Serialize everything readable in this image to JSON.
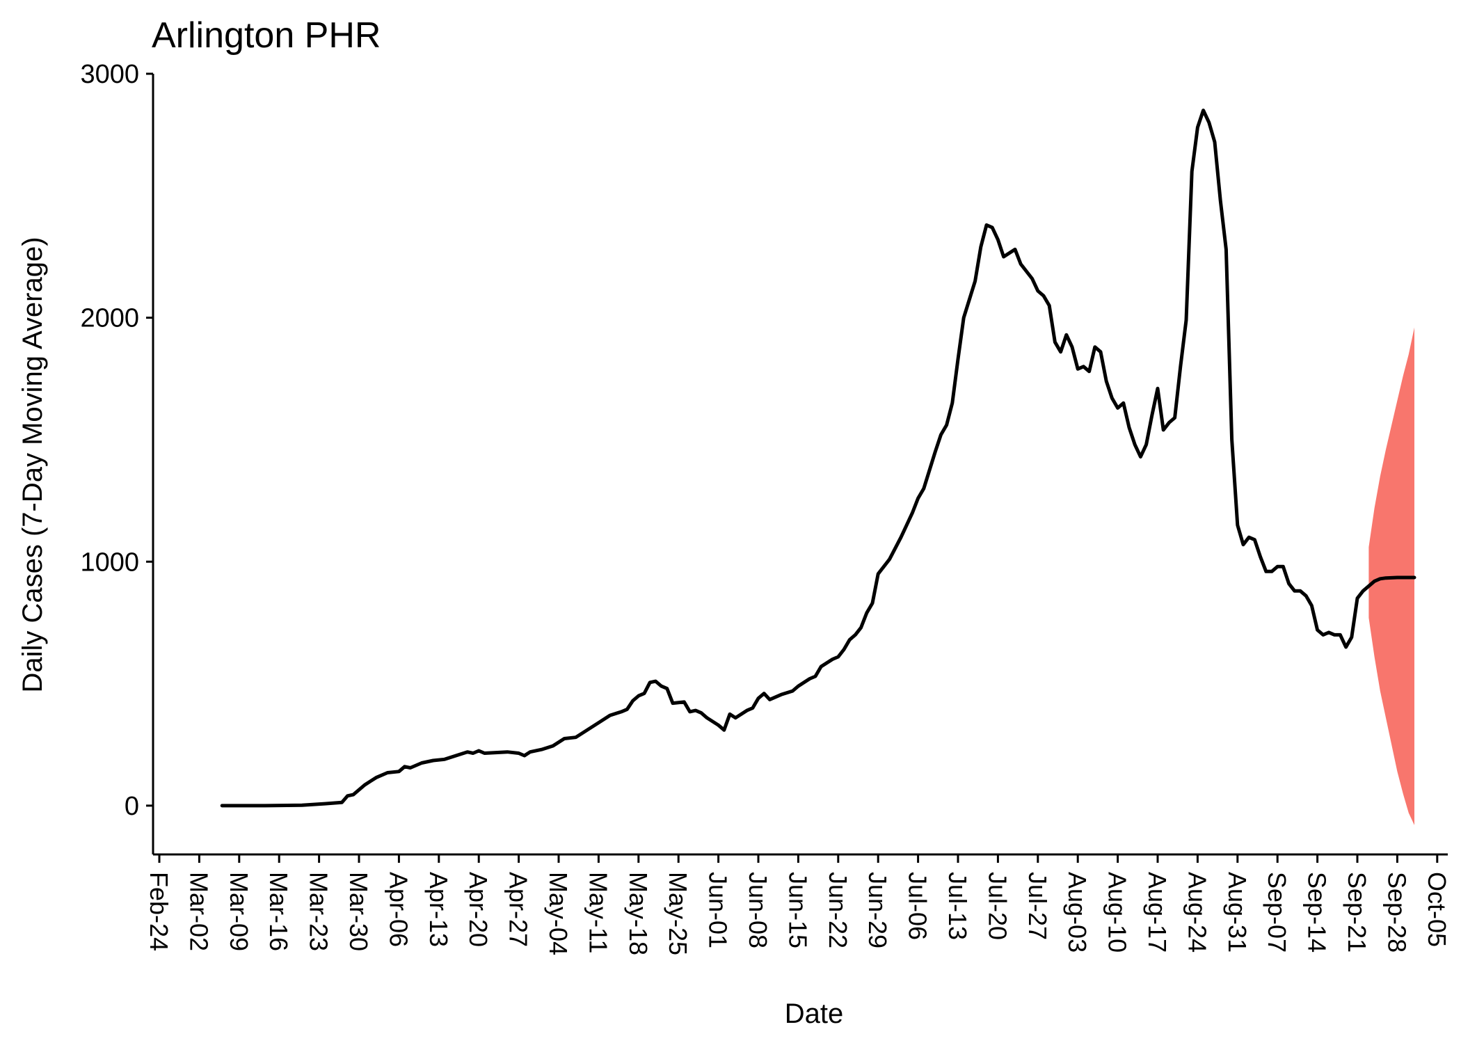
{
  "chart_data": {
    "type": "line",
    "title": "Arlington PHR",
    "xlabel": "Date",
    "ylabel": "Daily Cases (7-Day Moving Average)",
    "ylim": [
      -200,
      3000
    ],
    "x_ticks": [
      "Feb-24",
      "Mar-02",
      "Mar-09",
      "Mar-16",
      "Mar-23",
      "Mar-30",
      "Apr-06",
      "Apr-13",
      "Apr-20",
      "Apr-27",
      "May-04",
      "May-11",
      "May-18",
      "May-25",
      "Jun-01",
      "Jun-08",
      "Jun-15",
      "Jun-22",
      "Jun-29",
      "Jul-06",
      "Jul-13",
      "Jul-20",
      "Jul-27",
      "Aug-03",
      "Aug-10",
      "Aug-17",
      "Aug-24",
      "Aug-31",
      "Sep-07",
      "Sep-14",
      "Sep-21",
      "Sep-28",
      "Oct-05"
    ],
    "y_ticks": [
      0,
      1000,
      2000,
      3000
    ],
    "x_range": [
      "Feb-24",
      "Oct-05"
    ],
    "grid": false,
    "line_color": "#000000",
    "band_color": "#F8766D",
    "series": [
      {
        "values": [
          [
            "Mar-06",
            0
          ],
          [
            "Mar-13",
            0
          ],
          [
            "Mar-20",
            2
          ],
          [
            "Mar-24",
            8
          ],
          [
            "Mar-27",
            13
          ],
          [
            "Mar-28",
            40
          ],
          [
            "Mar-29",
            45
          ],
          [
            "Mar-31",
            85
          ],
          [
            "Apr-01",
            100
          ],
          [
            "Apr-02",
            115
          ],
          [
            "Apr-04",
            135
          ],
          [
            "Apr-06",
            140
          ],
          [
            "Apr-07",
            160
          ],
          [
            "Apr-08",
            155
          ],
          [
            "Apr-10",
            175
          ],
          [
            "Apr-12",
            185
          ],
          [
            "Apr-14",
            190
          ],
          [
            "Apr-16",
            205
          ],
          [
            "Apr-18",
            220
          ],
          [
            "Apr-19",
            215
          ],
          [
            "Apr-20",
            225
          ],
          [
            "Apr-21",
            215
          ],
          [
            "Apr-25",
            220
          ],
          [
            "Apr-27",
            215
          ],
          [
            "Apr-28",
            205
          ],
          [
            "Apr-29",
            220
          ],
          [
            "May-01",
            230
          ],
          [
            "May-03",
            245
          ],
          [
            "May-05",
            275
          ],
          [
            "May-07",
            280
          ],
          [
            "May-09",
            310
          ],
          [
            "May-11",
            340
          ],
          [
            "May-13",
            370
          ],
          [
            "May-15",
            385
          ],
          [
            "May-16",
            395
          ],
          [
            "May-17",
            430
          ],
          [
            "May-18",
            450
          ],
          [
            "May-19",
            460
          ],
          [
            "May-20",
            505
          ],
          [
            "May-21",
            510
          ],
          [
            "May-22",
            490
          ],
          [
            "May-23",
            480
          ],
          [
            "May-24",
            420
          ],
          [
            "May-26",
            425
          ],
          [
            "May-27",
            385
          ],
          [
            "May-28",
            390
          ],
          [
            "May-29",
            380
          ],
          [
            "May-30",
            360
          ],
          [
            "Jun-01",
            330
          ],
          [
            "Jun-02",
            310
          ],
          [
            "Jun-03",
            375
          ],
          [
            "Jun-04",
            360
          ],
          [
            "Jun-06",
            390
          ],
          [
            "Jun-07",
            400
          ],
          [
            "Jun-08",
            440
          ],
          [
            "Jun-09",
            460
          ],
          [
            "Jun-10",
            435
          ],
          [
            "Jun-12",
            455
          ],
          [
            "Jun-14",
            470
          ],
          [
            "Jun-15",
            490
          ],
          [
            "Jun-17",
            520
          ],
          [
            "Jun-18",
            530
          ],
          [
            "Jun-19",
            570
          ],
          [
            "Jun-21",
            600
          ],
          [
            "Jun-22",
            610
          ],
          [
            "Jun-23",
            640
          ],
          [
            "Jun-24",
            680
          ],
          [
            "Jun-25",
            700
          ],
          [
            "Jun-26",
            730
          ],
          [
            "Jun-27",
            790
          ],
          [
            "Jun-28",
            830
          ],
          [
            "Jun-29",
            950
          ],
          [
            "Jul-01",
            1010
          ],
          [
            "Jul-03",
            1100
          ],
          [
            "Jul-04",
            1150
          ],
          [
            "Jul-05",
            1200
          ],
          [
            "Jul-06",
            1260
          ],
          [
            "Jul-07",
            1300
          ],
          [
            "Jul-09",
            1450
          ],
          [
            "Jul-10",
            1520
          ],
          [
            "Jul-11",
            1560
          ],
          [
            "Jul-12",
            1650
          ],
          [
            "Jul-13",
            1830
          ],
          [
            "Jul-14",
            2000
          ],
          [
            "Jul-16",
            2150
          ],
          [
            "Jul-17",
            2290
          ],
          [
            "Jul-18",
            2380
          ],
          [
            "Jul-19",
            2370
          ],
          [
            "Jul-20",
            2320
          ],
          [
            "Jul-21",
            2250
          ],
          [
            "Jul-23",
            2280
          ],
          [
            "Jul-24",
            2220
          ],
          [
            "Jul-25",
            2190
          ],
          [
            "Jul-26",
            2160
          ],
          [
            "Jul-27",
            2110
          ],
          [
            "Jul-28",
            2090
          ],
          [
            "Jul-29",
            2050
          ],
          [
            "Jul-30",
            1900
          ],
          [
            "Jul-31",
            1860
          ],
          [
            "Aug-01",
            1930
          ],
          [
            "Aug-02",
            1880
          ],
          [
            "Aug-03",
            1790
          ],
          [
            "Aug-04",
            1800
          ],
          [
            "Aug-05",
            1780
          ],
          [
            "Aug-06",
            1880
          ],
          [
            "Aug-07",
            1860
          ],
          [
            "Aug-08",
            1740
          ],
          [
            "Aug-09",
            1670
          ],
          [
            "Aug-10",
            1630
          ],
          [
            "Aug-11",
            1650
          ],
          [
            "Aug-12",
            1550
          ],
          [
            "Aug-13",
            1480
          ],
          [
            "Aug-14",
            1430
          ],
          [
            "Aug-15",
            1480
          ],
          [
            "Aug-16",
            1600
          ],
          [
            "Aug-17",
            1710
          ],
          [
            "Aug-18",
            1540
          ],
          [
            "Aug-19",
            1570
          ],
          [
            "Aug-20",
            1590
          ],
          [
            "Aug-21",
            1800
          ],
          [
            "Aug-22",
            1990
          ],
          [
            "Aug-23",
            2600
          ],
          [
            "Aug-24",
            2780
          ],
          [
            "Aug-25",
            2850
          ],
          [
            "Aug-26",
            2800
          ],
          [
            "Aug-27",
            2720
          ],
          [
            "Aug-28",
            2480
          ],
          [
            "Aug-29",
            2280
          ],
          [
            "Aug-30",
            1500
          ],
          [
            "Aug-31",
            1150
          ],
          [
            "Sep-01",
            1070
          ],
          [
            "Sep-02",
            1100
          ],
          [
            "Sep-03",
            1090
          ],
          [
            "Sep-04",
            1020
          ],
          [
            "Sep-05",
            960
          ],
          [
            "Sep-06",
            960
          ],
          [
            "Sep-07",
            980
          ],
          [
            "Sep-08",
            980
          ],
          [
            "Sep-09",
            910
          ],
          [
            "Sep-10",
            880
          ],
          [
            "Sep-11",
            880
          ],
          [
            "Sep-12",
            860
          ],
          [
            "Sep-13",
            820
          ],
          [
            "Sep-14",
            720
          ],
          [
            "Sep-15",
            700
          ],
          [
            "Sep-16",
            710
          ],
          [
            "Sep-17",
            700
          ],
          [
            "Sep-18",
            700
          ],
          [
            "Sep-19",
            650
          ],
          [
            "Sep-20",
            690
          ],
          [
            "Sep-21",
            850
          ],
          [
            "Sep-22",
            880
          ],
          [
            "Sep-23",
            900
          ],
          [
            "Sep-24",
            920
          ],
          [
            "Sep-25",
            930
          ],
          [
            "Sep-26",
            933
          ],
          [
            "Sep-28",
            935
          ],
          [
            "Sep-30",
            935
          ],
          [
            "Oct-01",
            935
          ]
        ]
      }
    ],
    "forecast_band": {
      "x": [
        "Sep-23",
        "Sep-24",
        "Sep-25",
        "Sep-26",
        "Sep-27",
        "Sep-28",
        "Sep-29",
        "Sep-30",
        "Oct-01"
      ],
      "upper": [
        1060,
        1220,
        1350,
        1460,
        1560,
        1660,
        1760,
        1850,
        1960
      ],
      "lower": [
        770,
        610,
        470,
        360,
        250,
        140,
        50,
        -30,
        -80
      ]
    }
  }
}
